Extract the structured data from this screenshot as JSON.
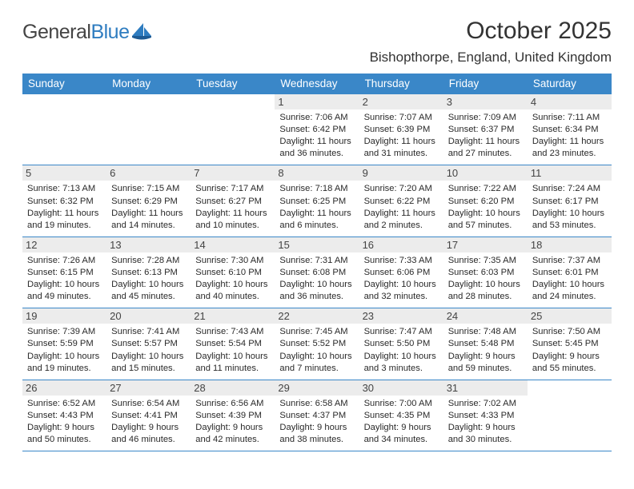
{
  "brand": {
    "part1": "General",
    "part2": "Blue"
  },
  "title": "October 2025",
  "location": "Bishopthorpe, England, United Kingdom",
  "colors": {
    "header_bg": "#3a87c8",
    "header_fg": "#ffffff",
    "daynum_bg": "#ececec",
    "rule": "#3a87c8",
    "text": "#2a2a2a",
    "brand_gray": "#444444",
    "brand_blue": "#2e7cc0",
    "page_bg": "#ffffff"
  },
  "day_names": [
    "Sunday",
    "Monday",
    "Tuesday",
    "Wednesday",
    "Thursday",
    "Friday",
    "Saturday"
  ],
  "first_day_index": 3,
  "fonts": {
    "title_size_pt": 22,
    "location_size_pt": 13,
    "dayname_size_pt": 10,
    "body_size_pt": 8.5
  },
  "days": [
    {
      "n": 1,
      "sunrise": "7:06 AM",
      "sunset": "6:42 PM",
      "daylight": "11 hours and 36 minutes."
    },
    {
      "n": 2,
      "sunrise": "7:07 AM",
      "sunset": "6:39 PM",
      "daylight": "11 hours and 31 minutes."
    },
    {
      "n": 3,
      "sunrise": "7:09 AM",
      "sunset": "6:37 PM",
      "daylight": "11 hours and 27 minutes."
    },
    {
      "n": 4,
      "sunrise": "7:11 AM",
      "sunset": "6:34 PM",
      "daylight": "11 hours and 23 minutes."
    },
    {
      "n": 5,
      "sunrise": "7:13 AM",
      "sunset": "6:32 PM",
      "daylight": "11 hours and 19 minutes."
    },
    {
      "n": 6,
      "sunrise": "7:15 AM",
      "sunset": "6:29 PM",
      "daylight": "11 hours and 14 minutes."
    },
    {
      "n": 7,
      "sunrise": "7:17 AM",
      "sunset": "6:27 PM",
      "daylight": "11 hours and 10 minutes."
    },
    {
      "n": 8,
      "sunrise": "7:18 AM",
      "sunset": "6:25 PM",
      "daylight": "11 hours and 6 minutes."
    },
    {
      "n": 9,
      "sunrise": "7:20 AM",
      "sunset": "6:22 PM",
      "daylight": "11 hours and 2 minutes."
    },
    {
      "n": 10,
      "sunrise": "7:22 AM",
      "sunset": "6:20 PM",
      "daylight": "10 hours and 57 minutes."
    },
    {
      "n": 11,
      "sunrise": "7:24 AM",
      "sunset": "6:17 PM",
      "daylight": "10 hours and 53 minutes."
    },
    {
      "n": 12,
      "sunrise": "7:26 AM",
      "sunset": "6:15 PM",
      "daylight": "10 hours and 49 minutes."
    },
    {
      "n": 13,
      "sunrise": "7:28 AM",
      "sunset": "6:13 PM",
      "daylight": "10 hours and 45 minutes."
    },
    {
      "n": 14,
      "sunrise": "7:30 AM",
      "sunset": "6:10 PM",
      "daylight": "10 hours and 40 minutes."
    },
    {
      "n": 15,
      "sunrise": "7:31 AM",
      "sunset": "6:08 PM",
      "daylight": "10 hours and 36 minutes."
    },
    {
      "n": 16,
      "sunrise": "7:33 AM",
      "sunset": "6:06 PM",
      "daylight": "10 hours and 32 minutes."
    },
    {
      "n": 17,
      "sunrise": "7:35 AM",
      "sunset": "6:03 PM",
      "daylight": "10 hours and 28 minutes."
    },
    {
      "n": 18,
      "sunrise": "7:37 AM",
      "sunset": "6:01 PM",
      "daylight": "10 hours and 24 minutes."
    },
    {
      "n": 19,
      "sunrise": "7:39 AM",
      "sunset": "5:59 PM",
      "daylight": "10 hours and 19 minutes."
    },
    {
      "n": 20,
      "sunrise": "7:41 AM",
      "sunset": "5:57 PM",
      "daylight": "10 hours and 15 minutes."
    },
    {
      "n": 21,
      "sunrise": "7:43 AM",
      "sunset": "5:54 PM",
      "daylight": "10 hours and 11 minutes."
    },
    {
      "n": 22,
      "sunrise": "7:45 AM",
      "sunset": "5:52 PM",
      "daylight": "10 hours and 7 minutes."
    },
    {
      "n": 23,
      "sunrise": "7:47 AM",
      "sunset": "5:50 PM",
      "daylight": "10 hours and 3 minutes."
    },
    {
      "n": 24,
      "sunrise": "7:48 AM",
      "sunset": "5:48 PM",
      "daylight": "9 hours and 59 minutes."
    },
    {
      "n": 25,
      "sunrise": "7:50 AM",
      "sunset": "5:45 PM",
      "daylight": "9 hours and 55 minutes."
    },
    {
      "n": 26,
      "sunrise": "6:52 AM",
      "sunset": "4:43 PM",
      "daylight": "9 hours and 50 minutes."
    },
    {
      "n": 27,
      "sunrise": "6:54 AM",
      "sunset": "4:41 PM",
      "daylight": "9 hours and 46 minutes."
    },
    {
      "n": 28,
      "sunrise": "6:56 AM",
      "sunset": "4:39 PM",
      "daylight": "9 hours and 42 minutes."
    },
    {
      "n": 29,
      "sunrise": "6:58 AM",
      "sunset": "4:37 PM",
      "daylight": "9 hours and 38 minutes."
    },
    {
      "n": 30,
      "sunrise": "7:00 AM",
      "sunset": "4:35 PM",
      "daylight": "9 hours and 34 minutes."
    },
    {
      "n": 31,
      "sunrise": "7:02 AM",
      "sunset": "4:33 PM",
      "daylight": "9 hours and 30 minutes."
    }
  ],
  "labels": {
    "sunrise": "Sunrise:",
    "sunset": "Sunset:",
    "daylight": "Daylight:"
  }
}
